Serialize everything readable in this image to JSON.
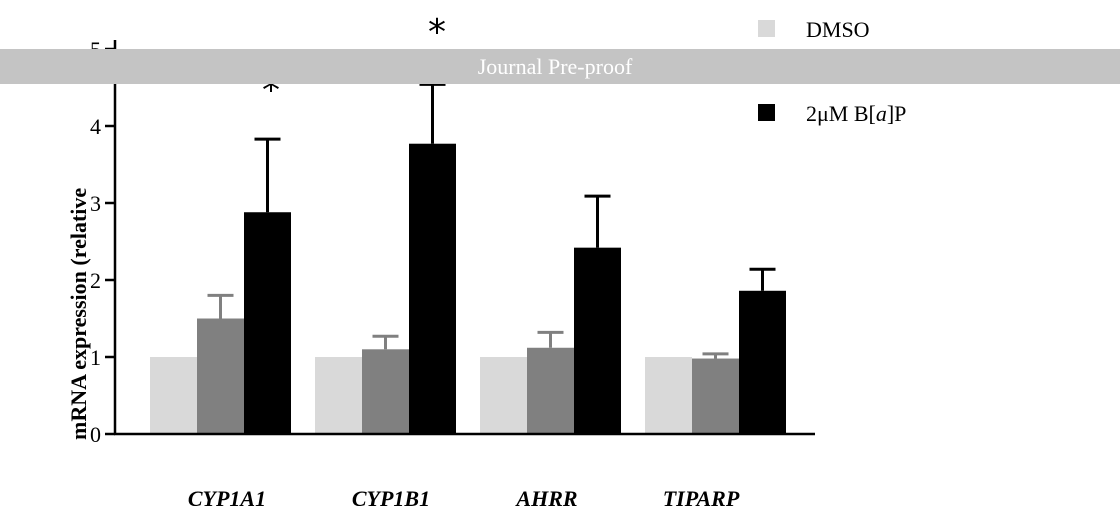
{
  "banner": {
    "text": "Journal Pre-proof",
    "color": "#c4c4c4"
  },
  "chart_data": {
    "type": "bar",
    "categories": [
      "CYP1A1",
      "CYP1B1",
      "AHRR",
      "TIPARP"
    ],
    "series": [
      {
        "name": "DMSO",
        "color": "#d9d9d9",
        "values": [
          1.0,
          1.0,
          1.0,
          1.0
        ],
        "errors": [
          0,
          0,
          0,
          0
        ]
      },
      {
        "name": "",
        "color": "#808080",
        "values": [
          1.5,
          1.1,
          1.12,
          0.98
        ],
        "errors": [
          0.3,
          0.17,
          0.2,
          0.06
        ]
      },
      {
        "name": "2μM B[a]P",
        "color": "#000000",
        "values": [
          2.88,
          3.77,
          2.42,
          1.86
        ],
        "errors": [
          0.95,
          0.77,
          0.67,
          0.28
        ]
      }
    ],
    "ylabel": "mRNA expression (relative",
    "yticks": [
      "0",
      "1",
      "2",
      "3",
      "4"
    ],
    "ylim": [
      0,
      5
    ],
    "significance": [
      {
        "category": "CYP1A1",
        "series": 2,
        "mark": "*"
      },
      {
        "category": "CYP1B1",
        "series": 2,
        "mark": "*"
      }
    ],
    "legend_position": "top-right"
  }
}
